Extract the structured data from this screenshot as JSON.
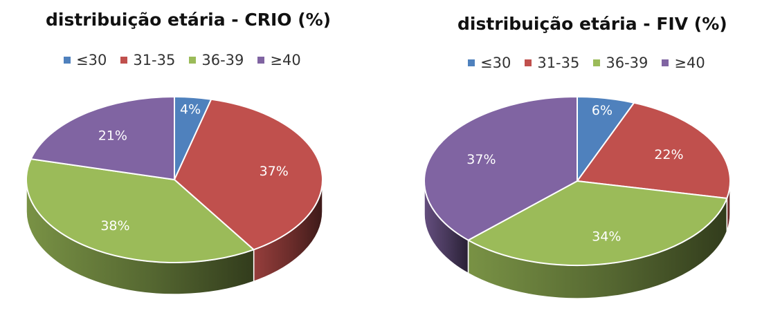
{
  "chart_data": [
    {
      "type": "pie",
      "title": "distribuição etária - CRIO (%)",
      "categories": [
        "≤30",
        "31-35",
        "36-39",
        "≥40"
      ],
      "values": [
        4,
        37,
        38,
        21
      ],
      "data_labels": [
        "4%",
        "37%",
        "38%",
        "21%"
      ],
      "legend": "top",
      "colors": [
        "#4f81bd",
        "#c0504d",
        "#9bbb59",
        "#8064a2"
      ]
    },
    {
      "type": "pie",
      "title": "distribuição etária - FIV (%)",
      "categories": [
        "≤30",
        "31-35",
        "36-39",
        "≥40"
      ],
      "values": [
        6,
        22,
        34,
        37
      ],
      "data_labels": [
        "6%",
        "22%",
        "34%",
        "37%"
      ],
      "legend": "top",
      "colors": [
        "#4f81bd",
        "#c0504d",
        "#9bbb59",
        "#8064a2"
      ]
    }
  ]
}
